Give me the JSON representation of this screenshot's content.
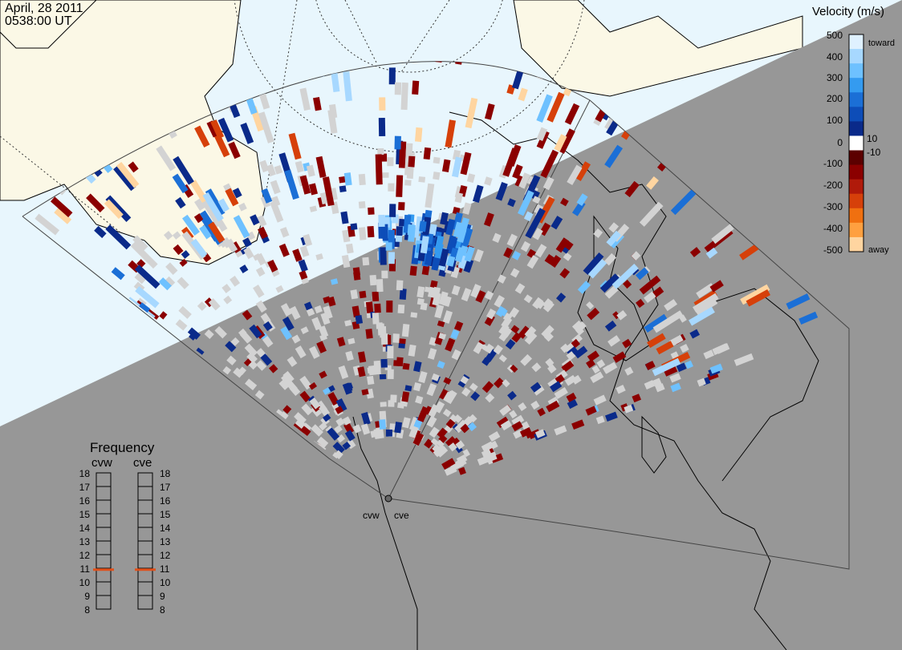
{
  "header": {
    "date": "April, 28 2011",
    "time": "0538:00 UT"
  },
  "colors": {
    "day_ocean": "#e8f6fd",
    "day_land": "#fbf8e6",
    "night": "#979797",
    "background": "#ffffff"
  },
  "velocity_scale": {
    "title": "Velocity (m/s)",
    "ticks": [
      "500",
      "400",
      "300",
      "200",
      "100",
      "10",
      "0",
      "-10",
      "-100",
      "-200",
      "-300",
      "-400",
      "-500"
    ],
    "toward_label": "toward",
    "away_label": "away",
    "colors": [
      "#dff1ff",
      "#a7d8ff",
      "#6ec1ff",
      "#349bf0",
      "#1b6fd6",
      "#0d4db8",
      "#0a2a8a",
      "#ffffff",
      "#5c0000",
      "#8b0000",
      "#b01a0a",
      "#d6400a",
      "#f07010",
      "#ffa040",
      "#ffd5a0"
    ]
  },
  "frequency": {
    "title": "Frequency",
    "columns": [
      "cvw",
      "cve"
    ],
    "ticks": [
      "18",
      "17",
      "16",
      "15",
      "14",
      "13",
      "12",
      "11",
      "10",
      "9",
      "8"
    ],
    "values_mhz": [
      10.9,
      10.9
    ],
    "marker_color": "#e0501a"
  },
  "radars": [
    {
      "code": "cvw",
      "label": "cvw"
    },
    {
      "code": "cve",
      "label": "cve"
    }
  ]
}
